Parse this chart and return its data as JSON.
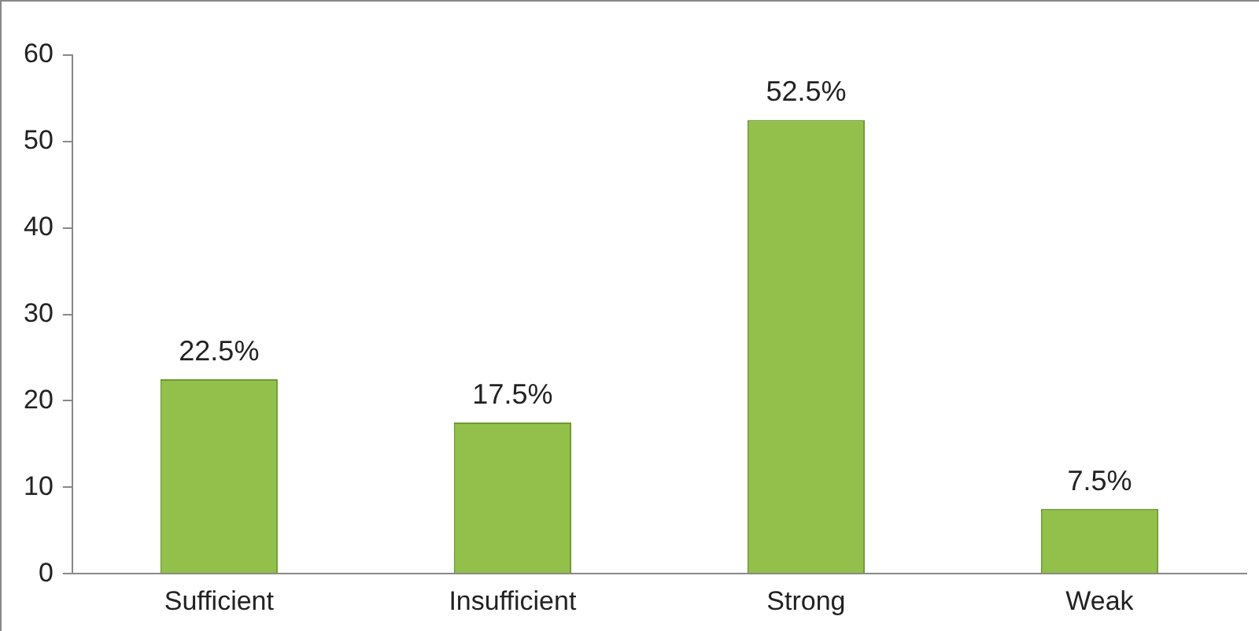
{
  "chart_data": {
    "type": "bar",
    "categories": [
      "Sufficient",
      "Insufficient",
      "Strong",
      "Weak"
    ],
    "values": [
      22.5,
      17.5,
      52.5,
      7.5
    ],
    "value_labels": [
      "22.5%",
      "17.5%",
      "52.5%",
      "7.5%"
    ],
    "color": "#92c04a",
    "ylim": [
      0,
      60
    ],
    "yticks": [
      0,
      10,
      20,
      30,
      40,
      50,
      60
    ],
    "grid": false,
    "legend": false
  }
}
